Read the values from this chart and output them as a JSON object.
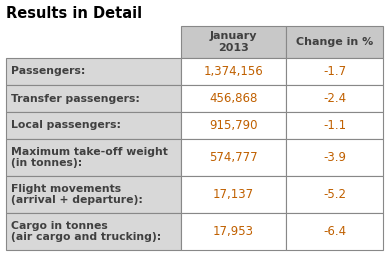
{
  "title": "Results in Detail",
  "col_headers": [
    "January\n2013",
    "Change in %"
  ],
  "row_labels": [
    "Passengers:",
    "Transfer passengers:",
    "Local passengers:",
    "Maximum take-off weight\n(in tonnes):",
    "Flight movements\n(arrival + departure):",
    "Cargo in tonnes\n(air cargo and trucking):"
  ],
  "jan_values": [
    "1,374,156",
    "456,868",
    "915,790",
    "574,777",
    "17,137",
    "17,953"
  ],
  "change_values": [
    "-1.7",
    "-2.4",
    "-1.1",
    "-3.9",
    "-5.2",
    "-6.4"
  ],
  "header_bg": "#c8c8c8",
  "row_bg": "#d8d8d8",
  "data_bg": "#ffffff",
  "border_color": "#888888",
  "title_color": "#000000",
  "header_text_color": "#404040",
  "row_label_color": "#404040",
  "data_text_color": "#c06000",
  "title_fontsize": 10.5,
  "header_fontsize": 8,
  "row_fontsize": 7.8,
  "data_fontsize": 8.5
}
